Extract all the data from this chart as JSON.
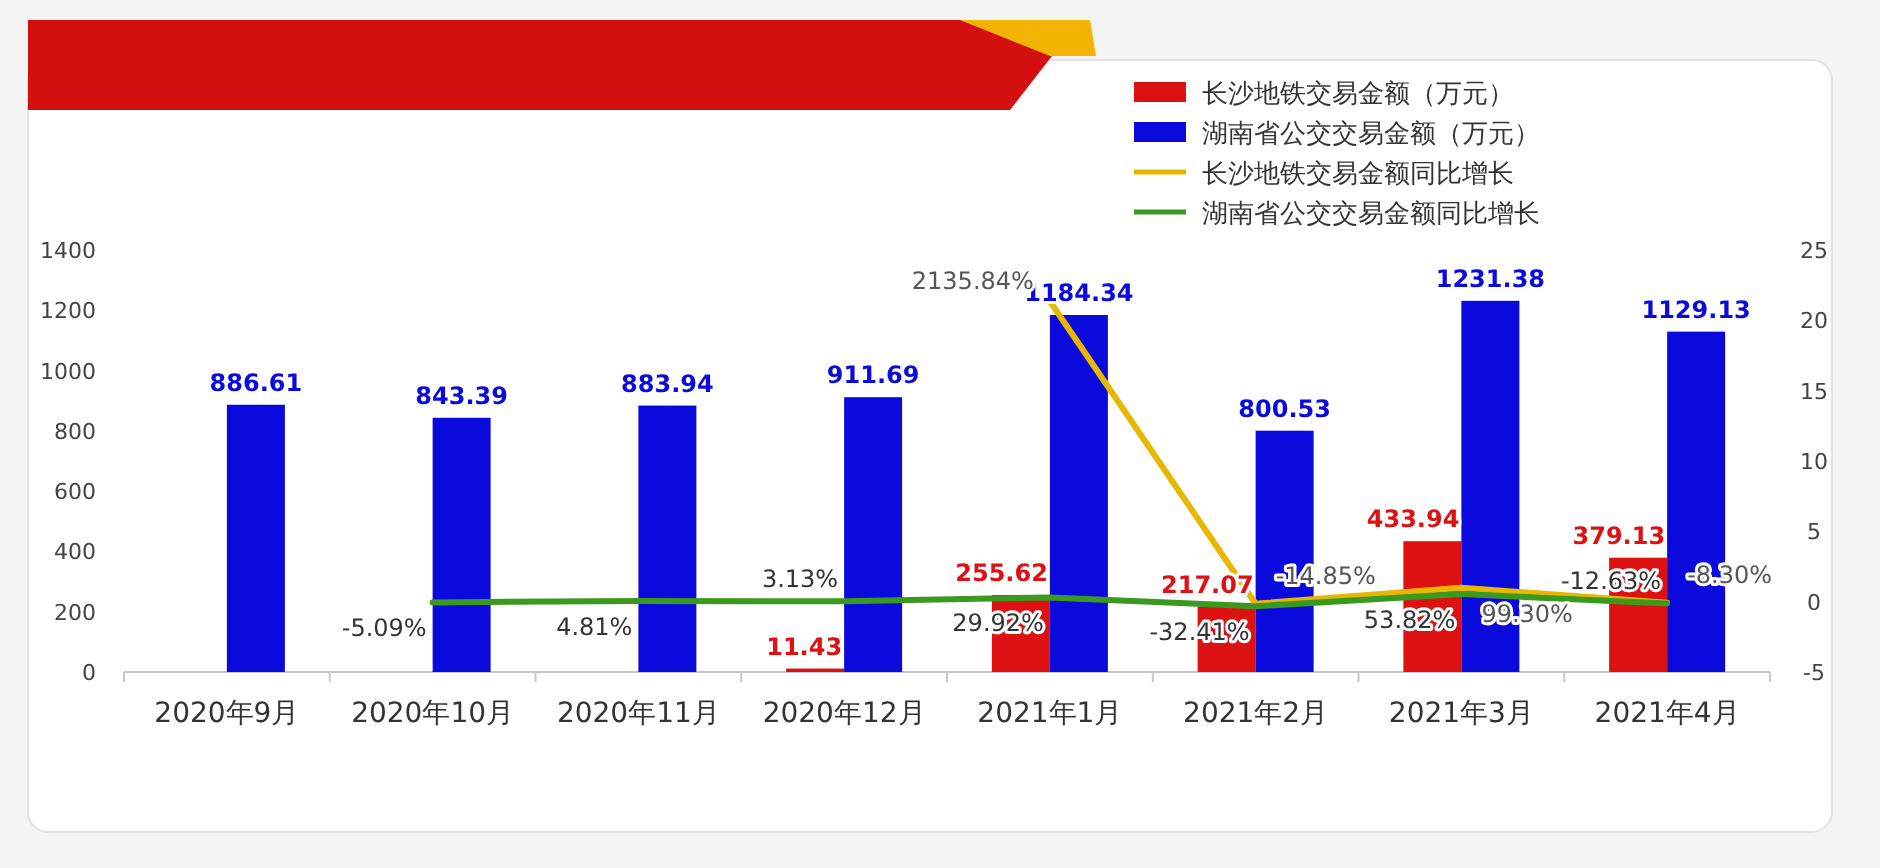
{
  "chart_data": {
    "type": "bar",
    "categories": [
      "2020年9月",
      "2020年10月",
      "2020年11月",
      "2020年12月",
      "2021年1月",
      "2021年2月",
      "2021年3月",
      "2021年4月"
    ],
    "series": [
      {
        "name": "长沙地铁交易金额（万元）",
        "color": "#dd1111",
        "values": [
          null,
          null,
          null,
          11.43,
          255.62,
          217.07,
          433.94,
          379.13
        ],
        "value_labels": [
          null,
          null,
          null,
          "11.43",
          "255.62",
          "217.07",
          "433.94",
          "379.13"
        ]
      },
      {
        "name": "湖南省公交交易金额（万元）",
        "color": "#0a0adc",
        "values": [
          886.61,
          843.39,
          883.94,
          911.69,
          1184.34,
          800.53,
          1231.38,
          1129.13
        ],
        "value_labels": [
          "886.61",
          "843.39",
          "883.94",
          "911.69",
          "1184.34",
          "800.53",
          "1231.38",
          "1129.13"
        ]
      },
      {
        "name": "长沙地铁交易金额同比增长",
        "type": "line",
        "axis": "y2",
        "color": "#e8b800",
        "values": [
          null,
          null,
          null,
          null,
          21.3584,
          -0.1485,
          0.993,
          -0.083
        ],
        "value_labels": [
          null,
          null,
          null,
          null,
          "2135.84%",
          "-14.85%",
          "99.30%",
          "-8.30%"
        ]
      },
      {
        "name": "湖南省公交交易金额同比增长",
        "type": "line",
        "axis": "y2",
        "color": "#3a9a20",
        "values": [
          null,
          -0.0509,
          0.0481,
          0.0313,
          0.2992,
          -0.3241,
          0.5382,
          -0.1263
        ],
        "value_labels": [
          null,
          "-5.09%",
          "4.81%",
          "3.13%",
          "29.92%",
          "-32.41%",
          "53.82%",
          "-12.63%"
        ]
      }
    ],
    "ylim": [
      0,
      1400
    ],
    "yticks": [
      0,
      200,
      400,
      600,
      800,
      1000,
      1200,
      1400
    ],
    "y2lim": [
      -5,
      25
    ],
    "y2ticks": [
      -5,
      0,
      5,
      10,
      15,
      20,
      25
    ],
    "grid": false,
    "legend": "top right"
  }
}
